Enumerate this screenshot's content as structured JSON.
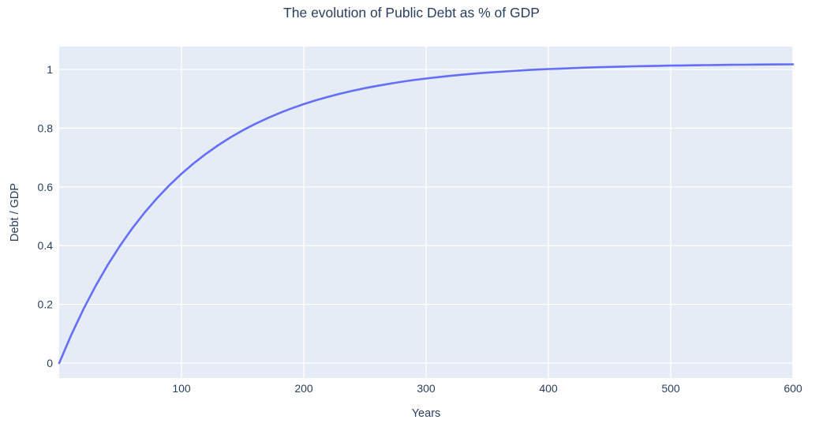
{
  "chart_data": {
    "type": "line",
    "title": "The evolution of Public Debt as % of GDP",
    "xlabel": "Years",
    "ylabel": "Debt / GDP",
    "xlim": [
      0,
      600
    ],
    "ylim": [
      -0.051,
      1.078
    ],
    "x_ticks": [
      100,
      200,
      300,
      400,
      500,
      600
    ],
    "y_ticks": [
      0,
      0.2,
      0.4,
      0.6,
      0.8,
      1
    ],
    "grid": true,
    "legend": "none",
    "series_name": "Debt / GDP",
    "x": [
      0,
      10,
      20,
      30,
      40,
      50,
      60,
      70,
      80,
      90,
      100,
      110,
      120,
      130,
      140,
      150,
      160,
      170,
      180,
      190,
      200,
      210,
      220,
      230,
      240,
      250,
      260,
      270,
      280,
      290,
      300,
      310,
      320,
      330,
      340,
      350,
      360,
      370,
      380,
      390,
      400,
      410,
      420,
      430,
      440,
      450,
      460,
      470,
      480,
      490,
      500,
      510,
      520,
      530,
      540,
      550,
      560,
      570,
      580,
      590,
      600
    ],
    "y": [
      0,
      0.0971,
      0.1849,
      0.2644,
      0.3363,
      0.4013,
      0.4602,
      0.5135,
      0.5617,
      0.6053,
      0.6448,
      0.6805,
      0.7128,
      0.742,
      0.7685,
      0.7924,
      0.8141,
      0.8337,
      0.8514,
      0.8674,
      0.882,
      0.8951,
      0.907,
      0.9177,
      0.9275,
      0.9363,
      0.9442,
      0.9514,
      0.958,
      0.9639,
      0.9692,
      0.974,
      0.9784,
      0.9824,
      0.986,
      0.9892,
      0.9921,
      0.9948,
      0.9972,
      0.9994,
      1.0013,
      1.0031,
      1.0047,
      1.0062,
      1.0075,
      1.0087,
      1.0097,
      1.0107,
      1.0116,
      1.0124,
      1.0131,
      1.0138,
      1.0144,
      1.0149,
      1.0154,
      1.0158,
      1.0162,
      1.0166,
      1.0169,
      1.0172,
      1.0175
    ],
    "colors": {
      "line": "#636efa",
      "plot_background": "#e5ecf6",
      "paper_background": "#ffffff",
      "grid": "#ffffff",
      "text": "#2a3f5f"
    }
  }
}
